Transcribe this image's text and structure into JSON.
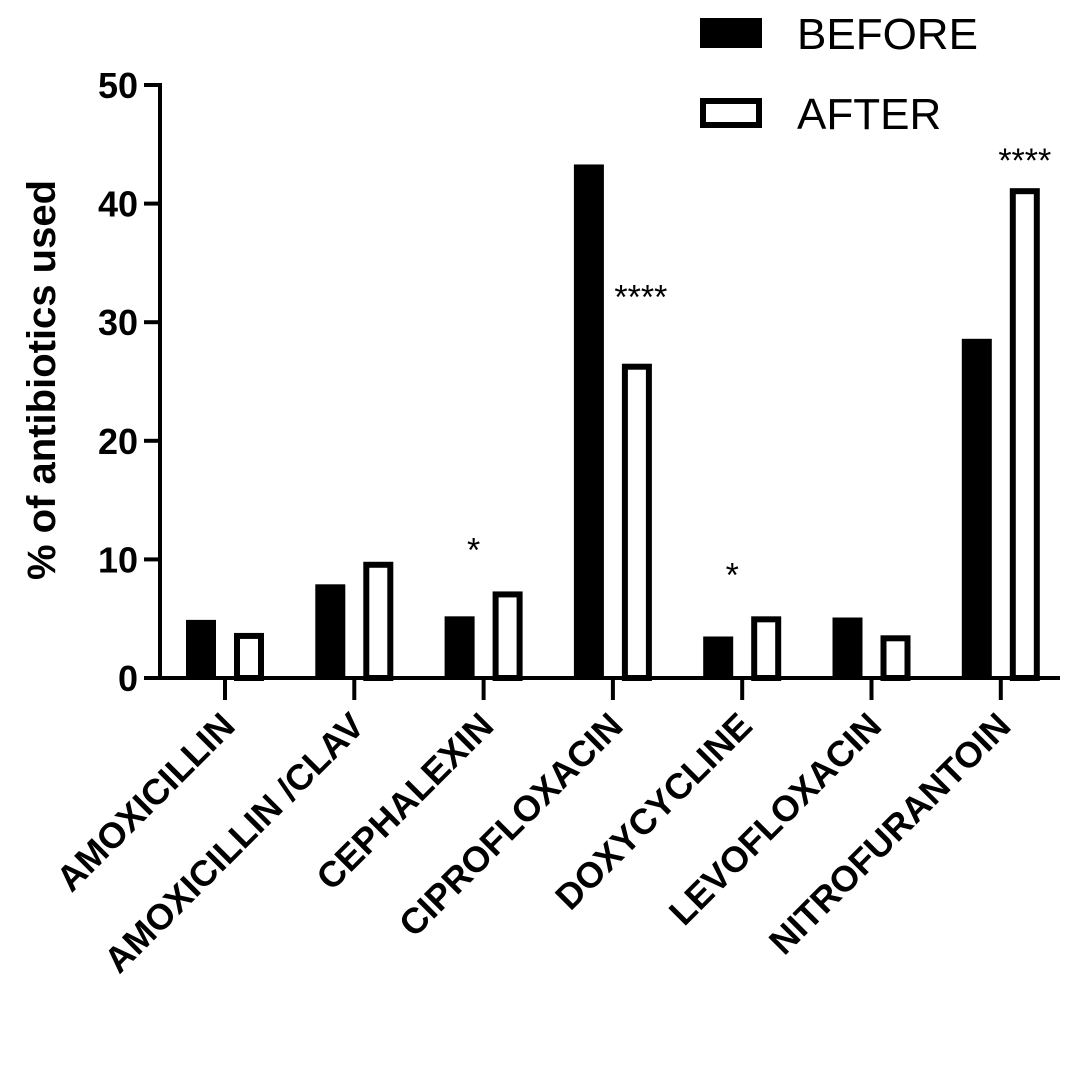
{
  "chart_data": {
    "type": "bar",
    "ylabel": "% of antibiotics used",
    "xlabel": "",
    "ylim": [
      0,
      50
    ],
    "yticks": [
      0,
      10,
      20,
      30,
      40,
      50
    ],
    "categories": [
      "AMOXICILLIN",
      "AMOXICILLIN /CLAV",
      "CEPHALEXIN",
      "CIPROFLOXACIN",
      "DOXYCYCLINE",
      "LEVOFLOXACIN",
      "NITROFURANTOIN"
    ],
    "series": [
      {
        "name": "BEFORE",
        "fill": "#000000",
        "values": [
          4.9,
          7.9,
          5.2,
          43.3,
          3.5,
          5.1,
          28.6
        ]
      },
      {
        "name": "AFTER",
        "fill": "#ffffff",
        "values": [
          3.8,
          9.8,
          7.3,
          26.5,
          5.2,
          3.6,
          41.3
        ]
      }
    ],
    "annotations": [
      {
        "category": "CEPHALEXIN",
        "text": "*"
      },
      {
        "category": "CIPROFLOXACIN",
        "text": "****"
      },
      {
        "category": "DOXYCYCLINE",
        "text": "*"
      },
      {
        "category": "NITROFURANTOIN",
        "text": "****"
      }
    ],
    "legend": {
      "placement": "top-right"
    },
    "grid": false
  }
}
